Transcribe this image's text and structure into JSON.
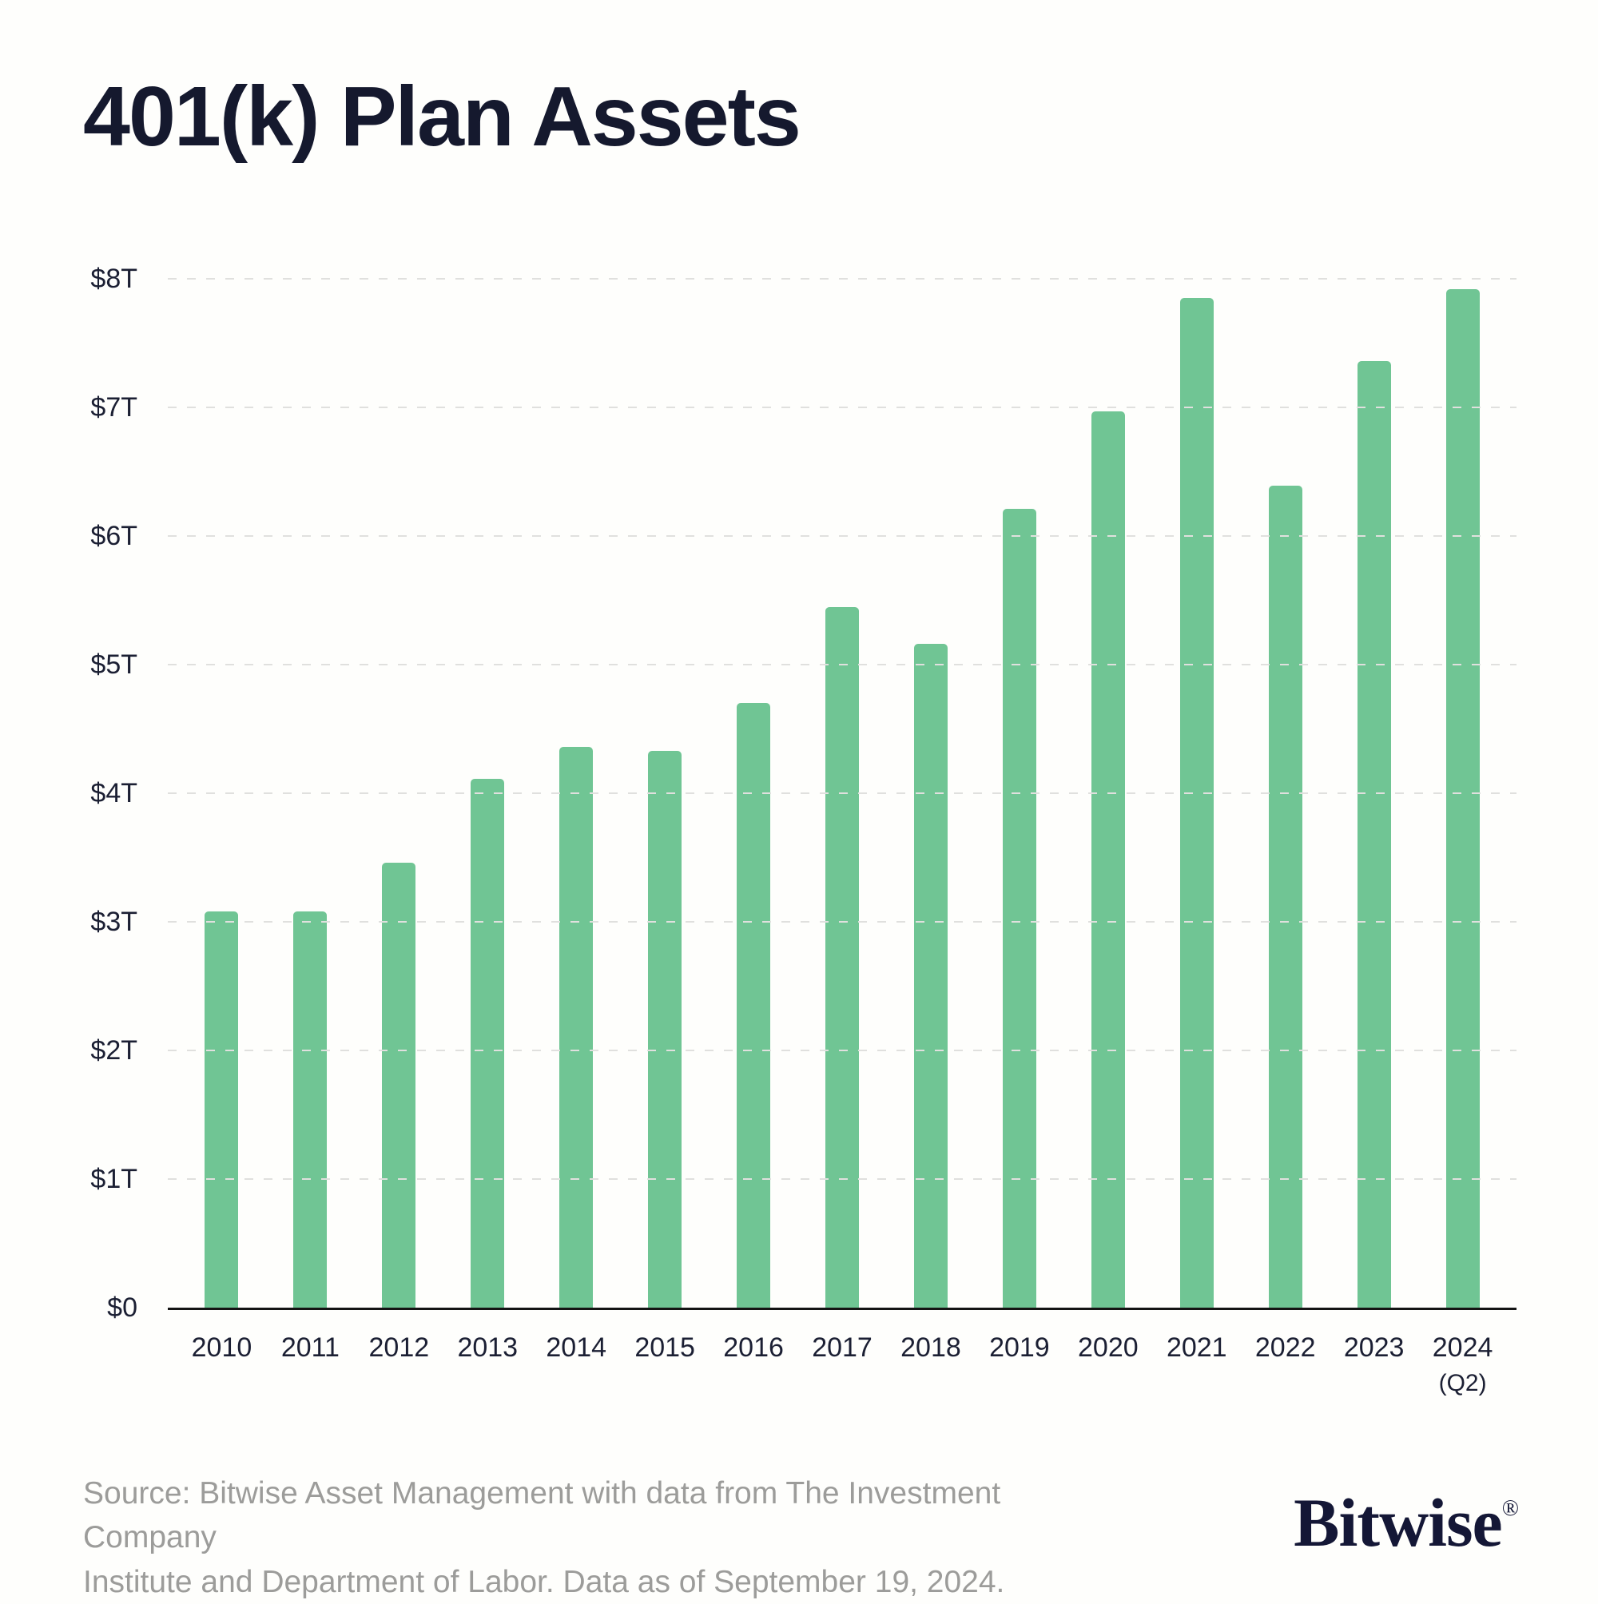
{
  "title": "401(k) Plan Assets",
  "chart_data": {
    "type": "bar",
    "title": "401(k) Plan Assets",
    "categories": [
      "2010",
      "2011",
      "2012",
      "2013",
      "2014",
      "2015",
      "2016",
      "2017",
      "2018",
      "2019",
      "2020",
      "2021",
      "2022",
      "2023",
      "2024"
    ],
    "category_sublabels": [
      "",
      "",
      "",
      "",
      "",
      "",
      "",
      "",
      "",
      "",
      "",
      "",
      "",
      "",
      "(Q2)"
    ],
    "values": [
      3.08,
      3.08,
      3.46,
      4.11,
      4.36,
      4.33,
      4.7,
      5.45,
      5.16,
      6.21,
      6.97,
      7.85,
      6.39,
      7.36,
      7.92
    ],
    "value_unit": "trillions USD",
    "xlabel": "",
    "ylabel": "",
    "y_ticks": [
      "$0",
      "$1T",
      "$2T",
      "$3T",
      "$4T",
      "$5T",
      "$6T",
      "$7T",
      "$8T"
    ],
    "ylim": [
      0,
      8
    ],
    "grid": "dashed horizontal",
    "legend": "none",
    "bar_color": "#70c594"
  },
  "footer": {
    "source_line1": "Source: Bitwise Asset Management with data from The Investment Company",
    "source_line2": "Institute and Department of Labor. Data as of September 19, 2024.",
    "brand": "Bitwise",
    "reg_mark": "®"
  }
}
